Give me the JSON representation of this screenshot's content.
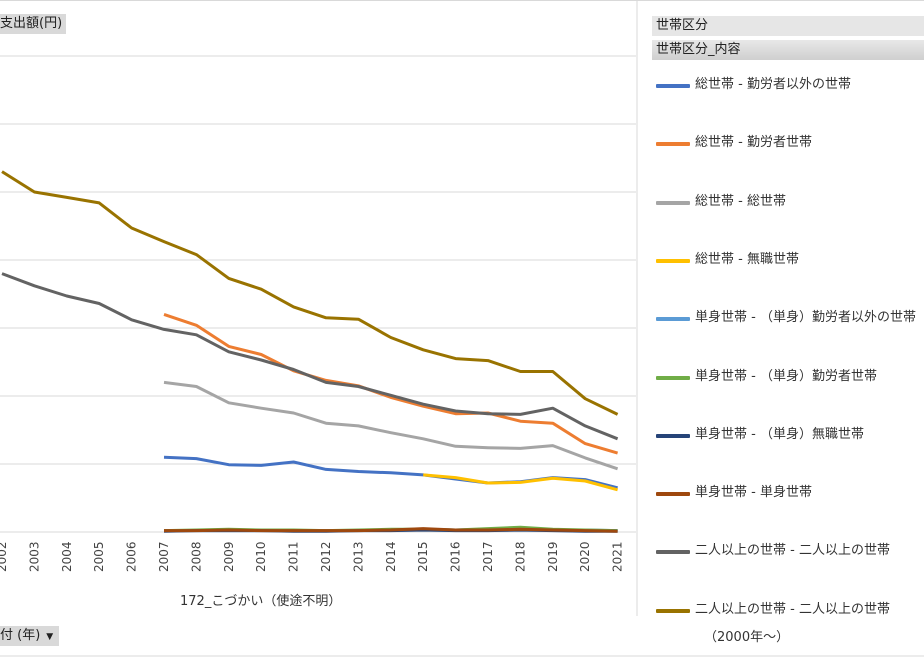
{
  "chart_data": {
    "type": "line",
    "ylabel": "支出額(円)",
    "xlabel": "172_こづかい（使途不明）",
    "x_field": "日付 (年)",
    "x_field_visible": "付 (年)",
    "legend_title": "世帯区分",
    "legend_subtitle": "世帯区分_内容",
    "legend_footer": "（2000年〜）",
    "x": [
      "2002",
      "2003",
      "2004",
      "2005",
      "2006",
      "2007",
      "2008",
      "2009",
      "2010",
      "2011",
      "2012",
      "2013",
      "2014",
      "2015",
      "2016",
      "2017",
      "2018",
      "2019",
      "2020",
      "2021"
    ],
    "ylim": [
      0,
      8
    ],
    "grid": true,
    "legend_position": "right",
    "series": [
      {
        "name": "総世帯 - 勤労者以外の世帯",
        "color": "#4472c4",
        "values": [
          null,
          null,
          null,
          null,
          null,
          1.1,
          1.08,
          0.99,
          0.98,
          1.03,
          0.92,
          0.89,
          0.87,
          0.84,
          0.78,
          0.72,
          0.74,
          0.8,
          0.77,
          0.65
        ]
      },
      {
        "name": "総世帯 - 勤労者世帯",
        "color": "#ed7d31",
        "values": [
          null,
          null,
          null,
          null,
          null,
          3.2,
          3.04,
          2.73,
          2.61,
          2.37,
          2.23,
          2.15,
          1.98,
          1.85,
          1.74,
          1.75,
          1.63,
          1.6,
          1.3,
          1.16
        ]
      },
      {
        "name": "総世帯 - 総世帯",
        "color": "#a5a5a5",
        "values": [
          null,
          null,
          null,
          null,
          null,
          2.2,
          2.14,
          1.9,
          1.82,
          1.75,
          1.6,
          1.56,
          1.46,
          1.37,
          1.26,
          1.24,
          1.23,
          1.27,
          1.09,
          0.93
        ]
      },
      {
        "name": "総世帯 - 無職世帯",
        "color": "#ffc000",
        "values": [
          null,
          null,
          null,
          null,
          null,
          null,
          null,
          null,
          null,
          null,
          null,
          null,
          null,
          0.84,
          0.8,
          0.72,
          0.73,
          0.79,
          0.75,
          0.62
        ]
      },
      {
        "name": "単身世帯 - （単身）勤労者以外の世帯",
        "color": "#5b9bd5",
        "values": [
          null,
          null,
          null,
          null,
          null,
          0.02,
          0.02,
          0.02,
          0.02,
          0.02,
          0.02,
          0.02,
          0.03,
          0.04,
          0.03,
          0.04,
          0.05,
          0.03,
          0.03,
          0.02
        ]
      },
      {
        "name": "単身世帯 - （単身）勤労者世帯",
        "color": "#70ad47",
        "values": [
          null,
          null,
          null,
          null,
          null,
          0.02,
          0.03,
          0.04,
          0.03,
          0.03,
          0.02,
          0.03,
          0.04,
          0.04,
          0.03,
          0.05,
          0.07,
          0.04,
          0.03,
          0.02
        ]
      },
      {
        "name": "単身世帯 - （単身）無職世帯",
        "color": "#264478",
        "values": [
          null,
          null,
          null,
          null,
          null,
          0.01,
          0.02,
          0.02,
          0.02,
          0.01,
          0.01,
          0.02,
          0.02,
          0.03,
          0.02,
          0.02,
          0.03,
          0.02,
          0.01,
          0.01
        ]
      },
      {
        "name": "単身世帯 - 単身世帯",
        "color": "#9e480e",
        "values": [
          null,
          null,
          null,
          null,
          null,
          0.02,
          0.02,
          0.03,
          0.02,
          0.02,
          0.02,
          0.02,
          0.03,
          0.05,
          0.03,
          0.03,
          0.04,
          0.03,
          0.02,
          0.01
        ]
      },
      {
        "name": "二人以上の世帯 - 二人以上の世帯",
        "color": "#636363",
        "values": [
          3.8,
          3.62,
          3.47,
          3.36,
          3.12,
          2.98,
          2.9,
          2.65,
          2.53,
          2.39,
          2.2,
          2.14,
          2.01,
          1.88,
          1.78,
          1.74,
          1.73,
          1.82,
          1.56,
          1.37
        ]
      },
      {
        "name": "二人以上の世帯 - 二人以上の世帯",
        "color": "#997300",
        "values": [
          5.3,
          5.0,
          4.92,
          4.84,
          4.47,
          4.27,
          4.08,
          3.73,
          3.57,
          3.31,
          3.15,
          3.13,
          2.86,
          2.68,
          2.55,
          2.52,
          2.36,
          2.36,
          1.96,
          1.73
        ]
      }
    ]
  }
}
